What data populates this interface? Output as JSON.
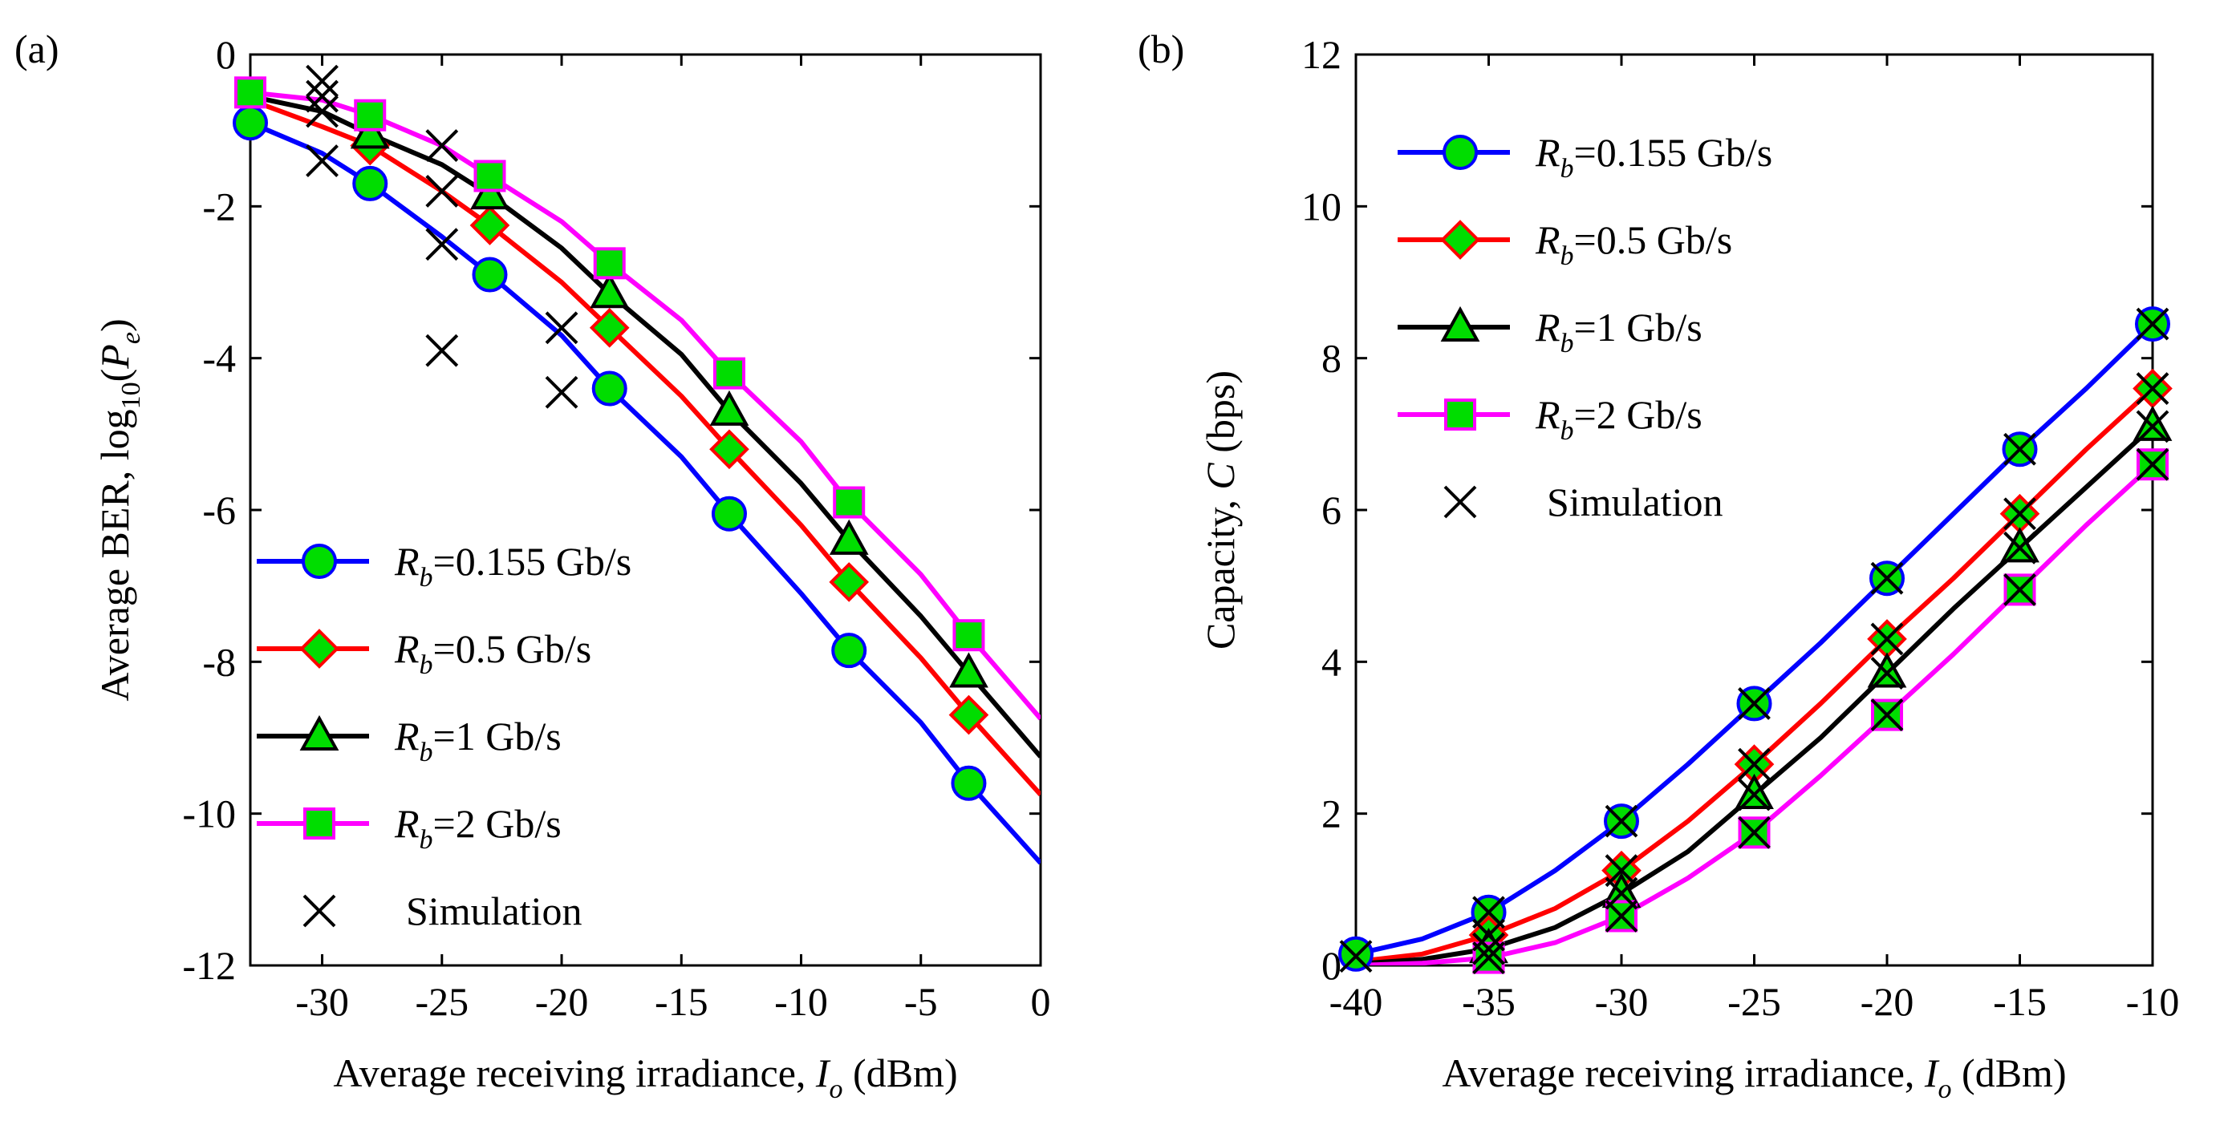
{
  "chart_data": [
    {
      "panel_label": "(a)",
      "type": "line",
      "xlabel": "Average receiving irradiance, ",
      "xlabel_italic": "I",
      "xlabel_sub": "o",
      "xlabel_unit": " (dBm)",
      "ylabel_main": "Average BER, log",
      "ylabel_sub": "10",
      "ylabel_paren_open": "(",
      "ylabel_italic": "P",
      "ylabel_italic_sub": "e",
      "ylabel_paren_close": ")",
      "xlim": [
        -33,
        0
      ],
      "ylim": [
        -12,
        0
      ],
      "xticks": [
        -30,
        -25,
        -20,
        -15,
        -10,
        -5,
        0
      ],
      "xtick_labels": [
        "-30",
        "-25",
        "-20",
        "-15",
        "-10",
        "-5",
        "0"
      ],
      "yticks": [
        -12,
        -10,
        -8,
        -6,
        -4,
        -2,
        0
      ],
      "ytick_labels": [
        "-12",
        "-10",
        "-8",
        "-6",
        "-4",
        "-2",
        "0"
      ],
      "legend_position": "bottom-left",
      "series": [
        {
          "name_var": "R",
          "name_sub": "b",
          "name_value": "=0.155 Gb/s",
          "color": "#0000ff",
          "marker": "circle",
          "curve_x": [
            -33,
            -30,
            -28,
            -25,
            -23,
            -20,
            -18,
            -15,
            -13,
            -10,
            -8,
            -5,
            -3,
            0
          ],
          "curve_y": [
            -0.9,
            -1.3,
            -1.7,
            -2.4,
            -2.9,
            -3.7,
            -4.4,
            -5.3,
            -6.05,
            -7.1,
            -7.85,
            -8.8,
            -9.6,
            -10.65
          ],
          "marker_x": [
            -33,
            -28,
            -23,
            -18,
            -13,
            -8,
            -3
          ],
          "marker_y": [
            -0.9,
            -1.7,
            -2.9,
            -4.4,
            -6.05,
            -7.85,
            -9.6
          ]
        },
        {
          "name_var": "R",
          "name_sub": "b",
          "name_value": "=0.5 Gb/s",
          "color": "#ff0000",
          "marker": "diamond",
          "curve_x": [
            -33,
            -30,
            -28,
            -25,
            -23,
            -20,
            -18,
            -15,
            -13,
            -10,
            -8,
            -5,
            -3,
            0
          ],
          "curve_y": [
            -0.6,
            -0.95,
            -1.2,
            -1.8,
            -2.25,
            -3.0,
            -3.6,
            -4.5,
            -5.2,
            -6.2,
            -6.95,
            -7.95,
            -8.7,
            -9.75
          ],
          "marker_x": [
            -28,
            -23,
            -18,
            -13,
            -8,
            -3
          ],
          "marker_y": [
            -1.2,
            -2.25,
            -3.6,
            -5.2,
            -6.95,
            -8.7
          ]
        },
        {
          "name_var": "R",
          "name_sub": "b",
          "name_value": "=1 Gb/s",
          "color": "#000000",
          "marker": "triangle",
          "curve_x": [
            -33,
            -30,
            -28,
            -25,
            -23,
            -20,
            -18,
            -15,
            -13,
            -10,
            -8,
            -5,
            -3,
            0
          ],
          "curve_y": [
            -0.55,
            -0.75,
            -1.05,
            -1.45,
            -1.85,
            -2.55,
            -3.15,
            -3.95,
            -4.7,
            -5.65,
            -6.4,
            -7.4,
            -8.15,
            -9.25
          ],
          "marker_x": [
            -28,
            -23,
            -18,
            -13,
            -8,
            -3
          ],
          "marker_y": [
            -1.05,
            -1.85,
            -3.15,
            -4.7,
            -6.4,
            -8.15
          ]
        },
        {
          "name_var": "R",
          "name_sub": "b",
          "name_value": "=2 Gb/s",
          "color": "#ff00ff",
          "marker": "square",
          "curve_x": [
            -33,
            -30,
            -28,
            -25,
            -23,
            -20,
            -18,
            -15,
            -13,
            -10,
            -8,
            -5,
            -3,
            0
          ],
          "curve_y": [
            -0.5,
            -0.6,
            -0.8,
            -1.2,
            -1.6,
            -2.2,
            -2.75,
            -3.5,
            -4.2,
            -5.1,
            -5.9,
            -6.85,
            -7.65,
            -8.75
          ],
          "marker_x": [
            -33,
            -28,
            -23,
            -18,
            -13,
            -8,
            -3
          ],
          "marker_y": [
            -0.5,
            -0.8,
            -1.6,
            -2.75,
            -4.2,
            -5.9,
            -7.65
          ]
        }
      ],
      "simulation": {
        "name": "Simulation",
        "color": "#000000",
        "marker": "x",
        "x": [
          -30,
          -30,
          -30,
          -30,
          -25,
          -25,
          -25,
          -25,
          -20,
          -20
        ],
        "y": [
          -0.35,
          -0.55,
          -0.75,
          -1.4,
          -1.2,
          -1.8,
          -2.5,
          -3.9,
          -3.6,
          -4.45
        ]
      }
    },
    {
      "panel_label": "(b)",
      "type": "line",
      "xlabel": "Average receiving irradiance, ",
      "xlabel_italic": "I",
      "xlabel_sub": "o",
      "xlabel_unit": " (dBm)",
      "ylabel_main": "Capacity, ",
      "ylabel_italic": "C",
      "ylabel_unit": " (bps)",
      "xlim": [
        -40,
        -10
      ],
      "ylim": [
        0,
        12
      ],
      "xticks": [
        -40,
        -35,
        -30,
        -25,
        -20,
        -15,
        -10
      ],
      "xtick_labels": [
        "-40",
        "-35",
        "-30",
        "-25",
        "-20",
        "-15",
        "-10"
      ],
      "yticks": [
        0,
        2,
        4,
        6,
        8,
        10,
        12
      ],
      "ytick_labels": [
        "0",
        "2",
        "4",
        "6",
        "8",
        "10",
        "12"
      ],
      "legend_position": "top-left",
      "series": [
        {
          "name_var": "R",
          "name_sub": "b",
          "name_value": "=0.155 Gb/s",
          "color": "#0000ff",
          "marker": "circle",
          "curve_x": [
            -40,
            -37.5,
            -35,
            -32.5,
            -30,
            -27.5,
            -25,
            -22.5,
            -20,
            -17.5,
            -15,
            -12.5,
            -10
          ],
          "curve_y": [
            0.15,
            0.35,
            0.7,
            1.25,
            1.9,
            2.65,
            3.45,
            4.25,
            5.1,
            5.95,
            6.8,
            7.6,
            8.45
          ],
          "marker_x": [
            -40,
            -35,
            -30,
            -25,
            -20,
            -15,
            -10
          ],
          "marker_y": [
            0.15,
            0.7,
            1.9,
            3.45,
            5.1,
            6.8,
            8.45
          ]
        },
        {
          "name_var": "R",
          "name_sub": "b",
          "name_value": "=0.5 Gb/s",
          "color": "#ff0000",
          "marker": "diamond",
          "curve_x": [
            -40,
            -37.5,
            -35,
            -32.5,
            -30,
            -27.5,
            -25,
            -22.5,
            -20,
            -17.5,
            -15,
            -12.5,
            -10
          ],
          "curve_y": [
            0.05,
            0.15,
            0.4,
            0.75,
            1.25,
            1.9,
            2.65,
            3.45,
            4.3,
            5.1,
            5.95,
            6.8,
            7.6
          ],
          "marker_x": [
            -35,
            -30,
            -25,
            -20,
            -15,
            -10
          ],
          "marker_y": [
            0.4,
            1.25,
            2.65,
            4.3,
            5.95,
            7.6
          ]
        },
        {
          "name_var": "R",
          "name_sub": "b",
          "name_value": "=1 Gb/s",
          "color": "#000000",
          "marker": "triangle",
          "curve_x": [
            -40,
            -37.5,
            -35,
            -32.5,
            -30,
            -27.5,
            -25,
            -22.5,
            -20,
            -17.5,
            -15,
            -12.5,
            -10
          ],
          "curve_y": [
            0.02,
            0.08,
            0.22,
            0.5,
            0.95,
            1.5,
            2.25,
            3.0,
            3.85,
            4.7,
            5.5,
            6.3,
            7.1
          ],
          "marker_x": [
            -35,
            -30,
            -25,
            -20,
            -15,
            -10
          ],
          "marker_y": [
            0.22,
            0.95,
            2.25,
            3.85,
            5.5,
            7.1
          ]
        },
        {
          "name_var": "R",
          "name_sub": "b",
          "name_value": "=2 Gb/s",
          "color": "#ff00ff",
          "marker": "square",
          "curve_x": [
            -40,
            -37.5,
            -35,
            -32.5,
            -30,
            -27.5,
            -25,
            -22.5,
            -20,
            -17.5,
            -15,
            -12.5,
            -10
          ],
          "curve_y": [
            0.0,
            0.03,
            0.1,
            0.3,
            0.65,
            1.15,
            1.75,
            2.5,
            3.3,
            4.1,
            4.95,
            5.8,
            6.6
          ],
          "marker_x": [
            -35,
            -30,
            -25,
            -20,
            -15,
            -10
          ],
          "marker_y": [
            0.1,
            0.65,
            1.75,
            3.3,
            4.95,
            6.6
          ]
        }
      ],
      "simulation": {
        "name": "Simulation",
        "color": "#000000",
        "marker": "x",
        "x": [
          -40,
          -35,
          -35,
          -35,
          -35,
          -30,
          -30,
          -30,
          -30,
          -25,
          -25,
          -25,
          -25,
          -20,
          -20,
          -20,
          -20,
          -15,
          -15,
          -15,
          -15,
          -10,
          -10,
          -10,
          -10
        ],
        "y": [
          0.12,
          0.7,
          0.4,
          0.22,
          0.1,
          1.9,
          1.25,
          0.95,
          0.65,
          3.45,
          2.65,
          2.25,
          1.75,
          5.1,
          4.3,
          3.85,
          3.3,
          6.8,
          5.95,
          5.5,
          4.95,
          8.45,
          7.6,
          7.1,
          6.6
        ]
      }
    }
  ]
}
